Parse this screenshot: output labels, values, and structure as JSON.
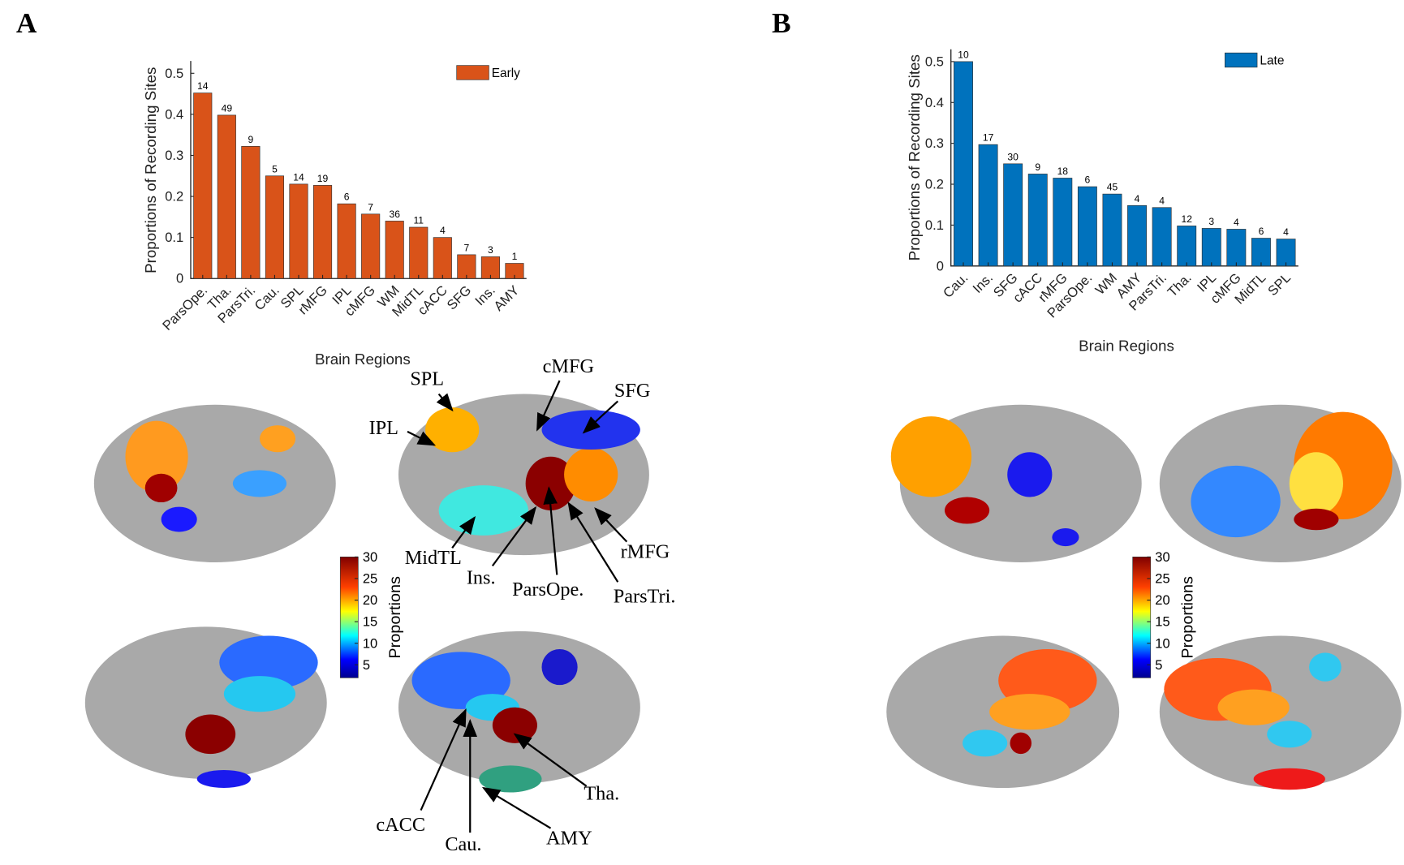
{
  "chart_data": [
    {
      "type": "bar",
      "panel_label": "A",
      "legend": "Early",
      "color": "#d95319",
      "ylabel": "Proportions of Recording Sites",
      "xlabel": "Brain Regions",
      "categories": [
        "ParsOpe.",
        "Tha.",
        "ParsTri.",
        "Cau.",
        "SPL",
        "rMFG",
        "IPL",
        "cMFG",
        "WM",
        "MidTL",
        "cACC",
        "SFG",
        "Ins.",
        "AMY"
      ],
      "values": [
        0.452,
        0.398,
        0.322,
        0.25,
        0.23,
        0.227,
        0.182,
        0.157,
        0.14,
        0.125,
        0.1,
        0.058,
        0.053,
        0.037
      ],
      "counts": [
        14,
        49,
        9,
        5,
        14,
        19,
        6,
        7,
        36,
        11,
        4,
        7,
        3,
        1
      ],
      "ylim": [
        0,
        0.53
      ],
      "yticks": [
        0,
        0.1,
        0.2,
        0.3,
        0.4,
        0.5
      ]
    },
    {
      "type": "bar",
      "panel_label": "B",
      "legend": "Late",
      "color": "#0072bd",
      "ylabel": "Proportions of Recording Sites",
      "xlabel": "Brain Regions",
      "categories": [
        "Cau.",
        "Ins.",
        "SFG",
        "cACC",
        "rMFG",
        "ParsOpe.",
        "WM",
        "AMY",
        "ParsTri.",
        "Tha.",
        "IPL",
        "cMFG",
        "MidTL",
        "SPL"
      ],
      "values": [
        0.5,
        0.297,
        0.25,
        0.225,
        0.215,
        0.194,
        0.176,
        0.148,
        0.143,
        0.098,
        0.092,
        0.09,
        0.068,
        0.066
      ],
      "counts": [
        10,
        17,
        30,
        9,
        18,
        6,
        45,
        4,
        4,
        12,
        3,
        4,
        6,
        4
      ],
      "ylim": [
        0,
        0.53
      ],
      "yticks": [
        0,
        0.1,
        0.2,
        0.3,
        0.4,
        0.5
      ]
    }
  ],
  "colorbars": [
    {
      "label": "Proportions",
      "clim": [
        2,
        30
      ],
      "ticks": [
        5,
        10,
        15,
        20,
        25,
        30
      ]
    },
    {
      "label": "Proportions",
      "clim": [
        2,
        30
      ],
      "ticks": [
        5,
        10,
        15,
        20,
        25,
        30
      ]
    }
  ],
  "annotations": [
    "SPL",
    "cMFG",
    "SFG",
    "IPL",
    "MidTL",
    "Ins.",
    "ParsOpe.",
    "ParsTri.",
    "rMFG",
    "cACC",
    "Cau.",
    "AMY",
    "Tha."
  ]
}
